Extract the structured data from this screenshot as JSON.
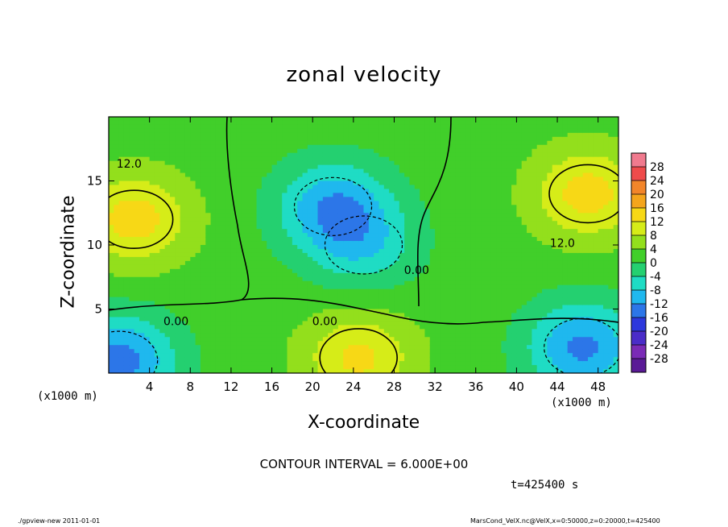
{
  "chart_data": {
    "type": "heatmap",
    "title": "zonal velocity",
    "xlabel": "X-coordinate",
    "ylabel": "Z-coordinate",
    "x_unit": "(x1000 m)",
    "x_ticks": [
      4,
      8,
      12,
      16,
      20,
      24,
      28,
      32,
      36,
      40,
      44,
      48
    ],
    "y_ticks": [
      5,
      10,
      15
    ],
    "xlim": [
      0,
      50
    ],
    "ylim": [
      0,
      20
    ],
    "colorbar": {
      "levels": [
        28,
        24,
        20,
        16,
        12,
        8,
        4,
        0,
        -4,
        -8,
        -12,
        -16,
        -20,
        -24,
        -28
      ],
      "colors": [
        "#f07a8e",
        "#ef4b4b",
        "#f2852a",
        "#f4a51c",
        "#f7d816",
        "#d6ec18",
        "#93df1c",
        "#41cf2a",
        "#24d070",
        "#1fdcc4",
        "#1fb8ee",
        "#2c76e8",
        "#2d38dc",
        "#4a2cc8",
        "#7a2ab6",
        "#5a1a96"
      ]
    },
    "contour_labels": [
      {
        "text": "12.0",
        "x": 2.0,
        "z": 16.3
      },
      {
        "text": "0.00",
        "x": 6.6,
        "z": 4.0
      },
      {
        "text": "0.00",
        "x": 21.2,
        "z": 4.0
      },
      {
        "text": "0.00",
        "x": 30.2,
        "z": 8.0
      },
      {
        "text": "12.0",
        "x": 44.5,
        "z": 10.1
      }
    ],
    "field_features": [
      {
        "center": [
          2.5,
          12.0
        ],
        "value": 14
      },
      {
        "center": [
          47.0,
          14.0
        ],
        "value": 14
      },
      {
        "center": [
          22.0,
          13.0
        ],
        "value": -11
      },
      {
        "center": [
          1.0,
          1.0
        ],
        "value": -14
      },
      {
        "center": [
          46.5,
          2.0
        ],
        "value": -13
      },
      {
        "center": [
          24.5,
          1.2
        ],
        "value": 13
      },
      {
        "center": [
          25.0,
          10.0
        ],
        "value": -6
      }
    ],
    "contour_interval": "CONTOUR INTERVAL = 6.000E+00",
    "time": "t=425400 s"
  },
  "labels": {
    "footer_left": "./gpview-new  2011-01-01",
    "footer_right": "MarsCond_VelX.nc@VelX,x=0:50000,z=0:20000,t=425400"
  }
}
